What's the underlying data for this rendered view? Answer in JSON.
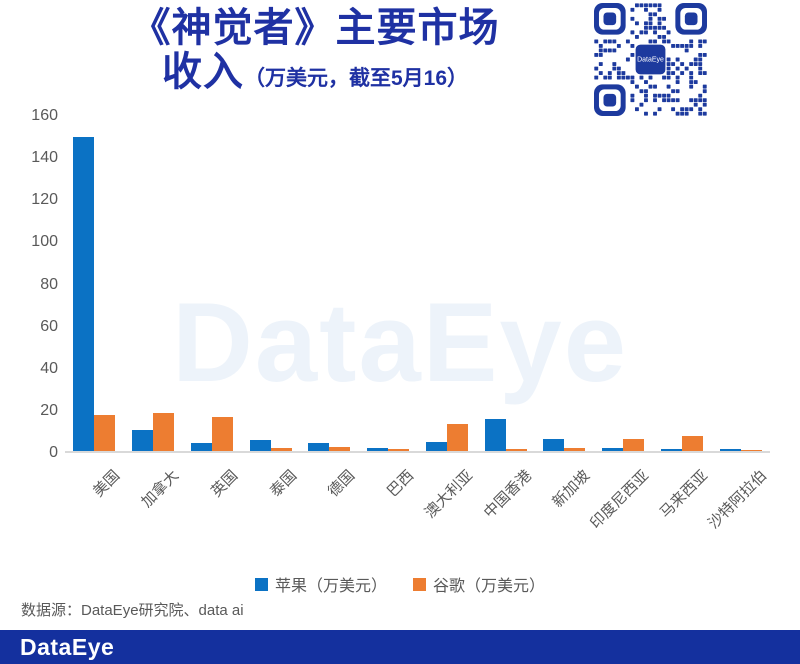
{
  "header": {
    "title_line1": "《神觉者》主要市场",
    "title_line2": "收入",
    "title_subtitle": "（万美元，截至5月16）",
    "title_color": "#1f31a3",
    "qr_label": "DataEye",
    "qr_color": "#1d3a9e"
  },
  "chart_data": {
    "type": "bar",
    "title": "《神觉者》主要市场收入（万美元，截至5月16）",
    "watermark": "DataEye",
    "categories": [
      "美国",
      "加拿大",
      "英国",
      "泰国",
      "德国",
      "巴西",
      "澳大利亚",
      "中国香港",
      "新加坡",
      "印度尼西亚",
      "马来西亚",
      "沙特阿拉伯"
    ],
    "series": [
      {
        "name": "苹果（万美元）",
        "color": "#0b72c4",
        "values": [
          149,
          10,
          4,
          5,
          4,
          1.5,
          4.5,
          15,
          5.5,
          1.5,
          1,
          1
        ]
      },
      {
        "name": "谷歌（万美元）",
        "color": "#ed7d31",
        "values": [
          17,
          18,
          16,
          1.5,
          2,
          1,
          13,
          1,
          1.5,
          5.5,
          7,
          0.5
        ]
      }
    ],
    "ylim": [
      0,
      160
    ],
    "yticks": [
      0,
      20,
      40,
      60,
      80,
      100,
      120,
      140,
      160
    ],
    "grid": false,
    "legend_position": "bottom",
    "axis_text_color": "#595959",
    "axis_line_color": "#d9d9d9"
  },
  "footer": {
    "source_text": "数据源：DataEye研究院、data ai",
    "logo_text": "DataEye",
    "bar_color": "#14309e"
  }
}
